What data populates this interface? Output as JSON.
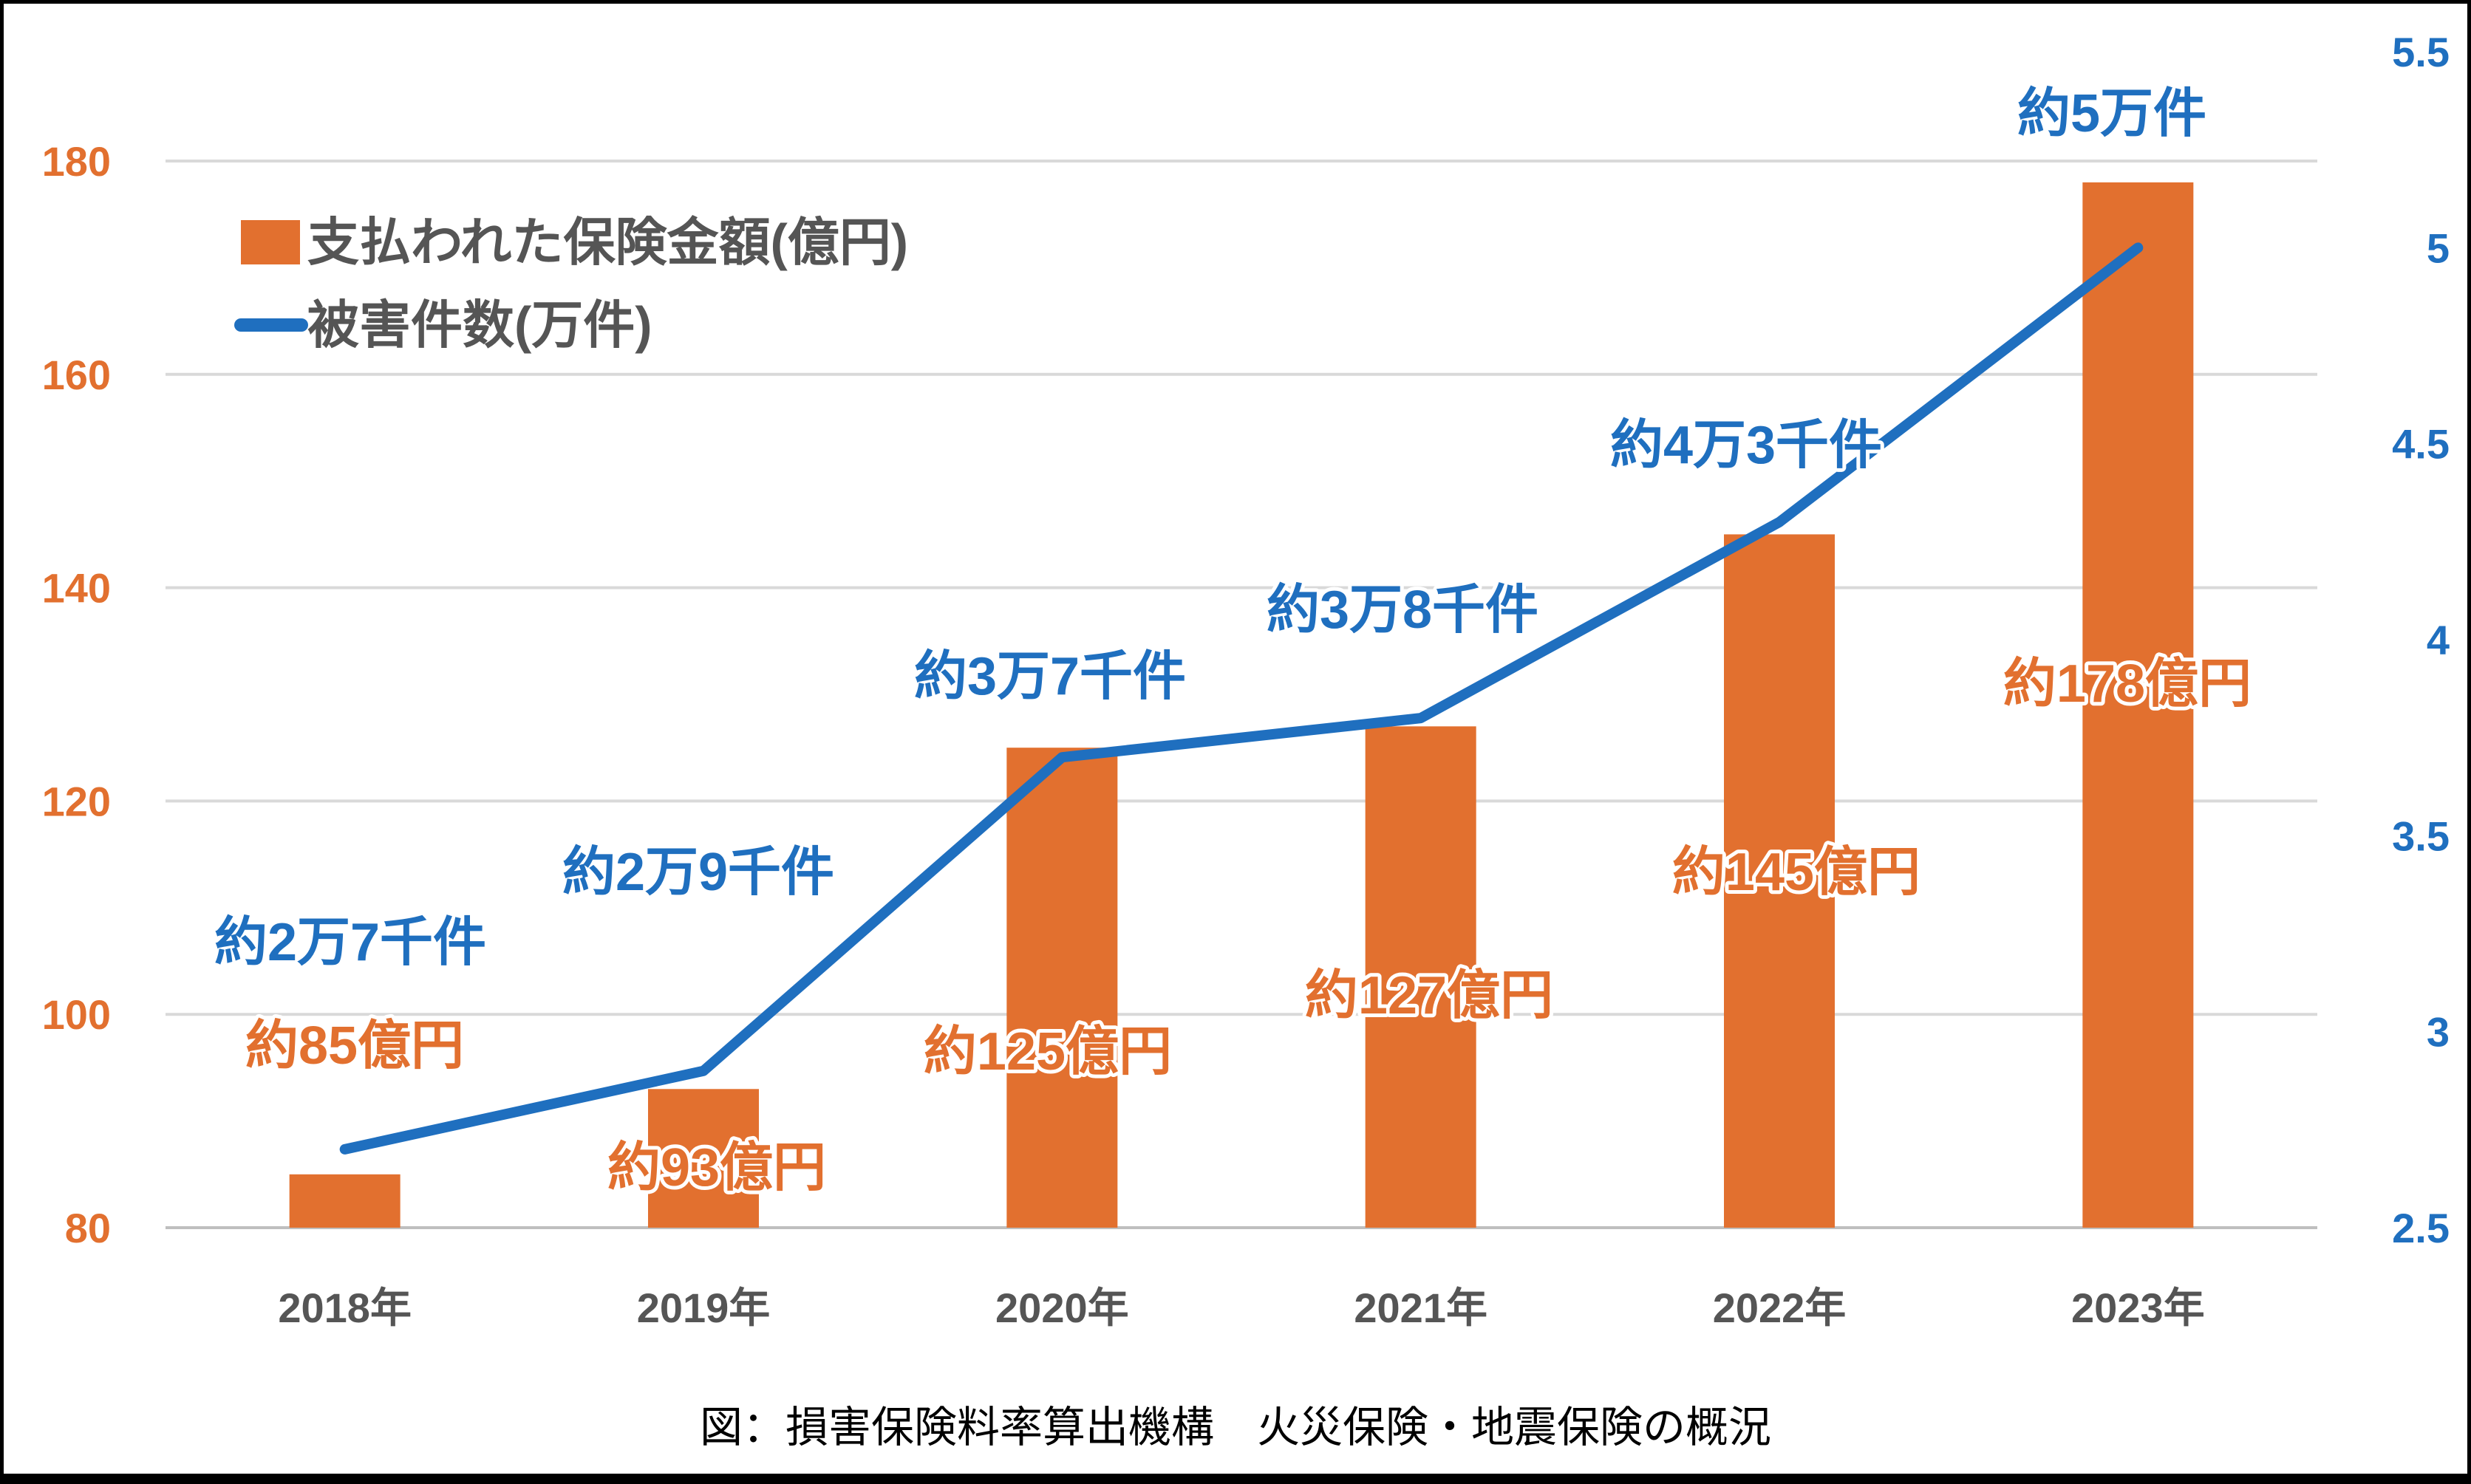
{
  "chart_data": {
    "type": "bar+line",
    "categories": [
      "2018年",
      "2019年",
      "2020年",
      "2021年",
      "2022年",
      "2023年"
    ],
    "series": [
      {
        "name": "支払われた保険金額(億円)",
        "type": "bar",
        "axis": "left",
        "color": "#E2702F",
        "values": [
          85,
          93,
          125,
          127,
          145,
          178
        ],
        "labels": [
          "約85億円",
          "約93億円",
          "約125億円",
          "約127億円",
          "約145億円",
          "約178億円"
        ]
      },
      {
        "name": "被害件数(万件)",
        "type": "line",
        "axis": "right",
        "color": "#1F6FBF",
        "values": [
          2.7,
          2.9,
          3.7,
          3.8,
          4.3,
          5.0
        ],
        "labels": [
          "約2万7千件",
          "約2万9千件",
          "約3万7千件",
          "約3万8千件",
          "約4万3千件",
          "約5万件"
        ]
      }
    ],
    "y_left": {
      "ylim": [
        80,
        180
      ],
      "ticks": [
        "80",
        "100",
        "120",
        "140",
        "160",
        "180"
      ],
      "color": "#E2702F"
    },
    "y_right": {
      "ylim": [
        2.5,
        5.5
      ],
      "ticks": [
        "2.5",
        "3",
        "3.5",
        "4",
        "4.5",
        "5",
        "5.5"
      ],
      "color": "#1F6FBF"
    },
    "grid": true,
    "legend": "top-left",
    "caption": "図：損害保険料率算出機構　火災保険・地震保険の概況"
  }
}
